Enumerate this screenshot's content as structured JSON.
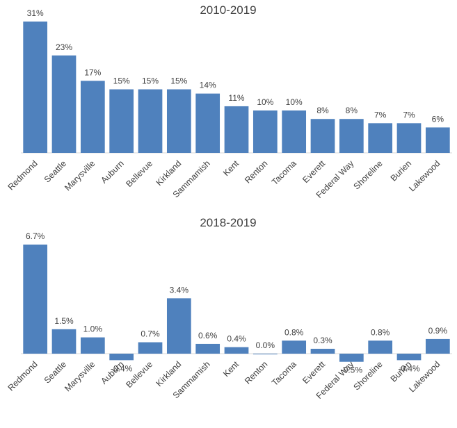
{
  "chart_data": [
    {
      "type": "bar",
      "title": "2010-2019",
      "categories": [
        "Redmond",
        "Seattle",
        "Marysville",
        "Auburn",
        "Bellevue",
        "Kirkland",
        "Sammamish",
        "Kent",
        "Renton",
        "Tacoma",
        "Everett",
        "Federal Way",
        "Shoreline",
        "Burien",
        "Lakewood"
      ],
      "values": [
        31,
        23,
        17,
        15,
        15,
        15,
        14,
        11,
        10,
        10,
        8,
        8,
        7,
        7,
        6
      ],
      "value_labels": [
        "31%",
        "23%",
        "17%",
        "15%",
        "15%",
        "15%",
        "14%",
        "11%",
        "10%",
        "10%",
        "8%",
        "8%",
        "7%",
        "7%",
        "6%"
      ],
      "unit": "%",
      "ylim": [
        0,
        31
      ],
      "xlabel": "",
      "ylabel": "",
      "grid": false,
      "color": "#4f81bd"
    },
    {
      "type": "bar",
      "title": "2018-2019",
      "categories": [
        "Redmond",
        "Seattle",
        "Marysville",
        "Auburn",
        "Bellevue",
        "Kirkland",
        "Sammamish",
        "Kent",
        "Renton",
        "Tacoma",
        "Everett",
        "Federal Way",
        "Shoreline",
        "Burien",
        "Lakewood"
      ],
      "values": [
        6.7,
        1.5,
        1.0,
        -0.4,
        0.7,
        3.4,
        0.6,
        0.4,
        0.0,
        0.8,
        0.3,
        -0.5,
        0.8,
        -0.4,
        0.9
      ],
      "value_labels": [
        "6.7%",
        "1.5%",
        "1.0%",
        "-0.4%",
        "0.7%",
        "3.4%",
        "0.6%",
        "0.4%",
        "0.0%",
        "0.8%",
        "0.3%",
        "-0.5%",
        "0.8%",
        "-0.4%",
        "0.9%"
      ],
      "unit": "%",
      "ylim": [
        -0.5,
        6.7
      ],
      "xlabel": "",
      "ylabel": "",
      "grid": false,
      "color": "#4f81bd"
    }
  ]
}
